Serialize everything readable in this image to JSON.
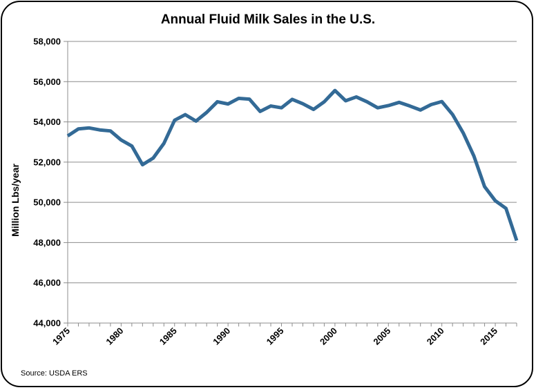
{
  "colors": {
    "line": "#336a96",
    "grid": "#8c8c8c",
    "axis": "#8c8c8c"
  },
  "chart_data": {
    "type": "line",
    "title": "Annual Fluid Milk Sales in the U.S.",
    "xlabel": "",
    "ylabel": "Million Lbs/year",
    "source": "Source: USDA ERS",
    "grid": true,
    "xlim": [
      1975,
      2017
    ],
    "ylim": [
      44000,
      58000
    ],
    "x_ticks": [
      "1975",
      "1980",
      "1985",
      "1990",
      "1995",
      "2000",
      "2005",
      "2010",
      "2015"
    ],
    "y_ticks": [
      "44,000",
      "46,000",
      "48,000",
      "50,000",
      "52,000",
      "54,000",
      "56,000",
      "58,000"
    ],
    "x": [
      1975,
      1976,
      1977,
      1978,
      1979,
      1980,
      1981,
      1982,
      1983,
      1984,
      1985,
      1986,
      1987,
      1988,
      1989,
      1990,
      1991,
      1992,
      1993,
      1994,
      1995,
      1996,
      1997,
      1998,
      1999,
      2000,
      2001,
      2002,
      2003,
      2004,
      2005,
      2006,
      2007,
      2008,
      2009,
      2010,
      2011,
      2012,
      2013,
      2014,
      2015,
      2016,
      2017
    ],
    "series": [
      {
        "values": [
          53300,
          53650,
          53700,
          53600,
          53550,
          53100,
          52800,
          51870,
          52200,
          52930,
          54080,
          54360,
          54040,
          54470,
          55000,
          54890,
          55170,
          55130,
          54520,
          54790,
          54700,
          55120,
          54900,
          54620,
          55000,
          55560,
          55050,
          55240,
          55000,
          54700,
          54810,
          54970,
          54790,
          54590,
          54860,
          55010,
          54370,
          53450,
          52300,
          50780,
          50080,
          49700,
          48100
        ]
      }
    ]
  }
}
